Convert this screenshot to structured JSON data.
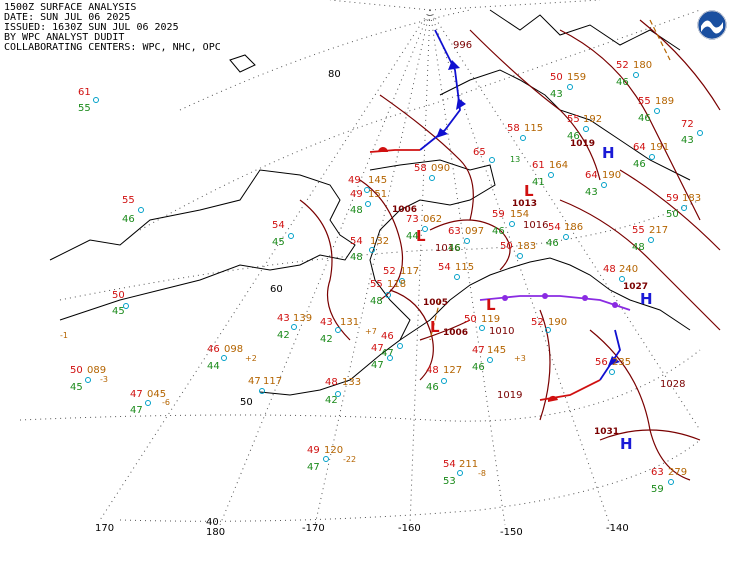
{
  "header": {
    "line1": "1500Z SURFACE ANALYSIS",
    "line2": "DATE: SUN JUL 06 2025",
    "line3": "ISSUED: 1630Z SUN JUL 06 2025",
    "line4": "BY WPC ANALYST DUDIT",
    "line5": "COLLABORATING CENTERS: WPC, NHC, OPC"
  },
  "logo": {
    "icon": "noaa-logo-icon",
    "text": "NOAA"
  },
  "grid": {
    "lat_labels": [
      "80",
      "60",
      "50",
      "40"
    ],
    "lon_labels": [
      "170",
      "180",
      "-170",
      "-160",
      "-150",
      "-140"
    ]
  },
  "pressure_centers": [
    {
      "type": "H",
      "value": "1019"
    },
    {
      "type": "L",
      "value": "1013"
    },
    {
      "type": "L",
      "value": "1006"
    },
    {
      "type": "L",
      "value": "1005"
    },
    {
      "type": "L",
      "value": "1006"
    },
    {
      "type": "H",
      "value": "1027"
    },
    {
      "type": "H",
      "value": "1031"
    }
  ],
  "isobar_labels": [
    "996",
    "1016",
    "1016",
    "1010",
    "1019",
    "1028"
  ],
  "stations": [
    {
      "t": "61",
      "d": "55"
    },
    {
      "t": "55",
      "d": "46"
    },
    {
      "t": "54",
      "d": "45"
    },
    {
      "t": "50",
      "d": "45",
      "tend": "-1"
    },
    {
      "t": "50",
      "p": "089",
      "d": "45",
      "tend": "-3"
    },
    {
      "t": "47",
      "p": "045",
      "d": "47",
      "tend": "-6"
    },
    {
      "t": "46",
      "p": "098",
      "d": "44",
      "tend": "+2"
    },
    {
      "t": "43",
      "p": "139",
      "d": "42"
    },
    {
      "t": "43",
      "p": "131",
      "d": "42",
      "tend": "+7"
    },
    {
      "t": "47",
      "p": "117"
    },
    {
      "t": "48",
      "p": "133",
      "d": "42"
    },
    {
      "t": "49",
      "p": "120",
      "d": "47",
      "tend": "-22"
    },
    {
      "t": "54",
      "p": "211",
      "d": "53",
      "tend": "-8"
    },
    {
      "t": "48",
      "p": "127",
      "d": "46"
    },
    {
      "t": "47",
      "p": "145",
      "d": "46",
      "tend": "+3"
    },
    {
      "t": "52",
      "p": "190"
    },
    {
      "t": "56",
      "p": "235"
    },
    {
      "t": "63",
      "p": "279",
      "d": "59"
    },
    {
      "t": "48",
      "p": "240"
    },
    {
      "t": "55",
      "p": "217",
      "d": "48"
    },
    {
      "t": "54",
      "p": "186"
    },
    {
      "t": "59",
      "p": "183",
      "d": "50"
    },
    {
      "t": "64",
      "p": "191",
      "d": "46"
    },
    {
      "t": "64",
      "p": "190",
      "d": "43"
    },
    {
      "t": "61",
      "p": "164",
      "d": "41"
    },
    {
      "t": "55",
      "p": "192",
      "d": "46"
    },
    {
      "t": "50",
      "p": "159",
      "d": "43"
    },
    {
      "t": "52",
      "p": "180",
      "d": "46"
    },
    {
      "t": "55",
      "p": "189",
      "d": "46"
    },
    {
      "t": "72",
      "d": "43"
    },
    {
      "t": "58",
      "p": "115"
    },
    {
      "t": "65",
      "d": "13"
    },
    {
      "t": "59",
      "p": "154",
      "d": "46"
    },
    {
      "t": "50",
      "p": "183",
      "d": "46"
    },
    {
      "t": "54",
      "p": "115"
    },
    {
      "t": "50",
      "p": "119"
    },
    {
      "t": "52",
      "p": "117"
    },
    {
      "t": "49",
      "p": "145",
      "d": "48"
    },
    {
      "t": "49",
      "p": "151",
      "d": "48"
    },
    {
      "t": "73",
      "p": "062",
      "d": "44"
    },
    {
      "t": "63",
      "p": "097",
      "d": "46"
    },
    {
      "t": "58",
      "p": "090"
    },
    {
      "t": "55",
      "p": "118",
      "d": "48"
    },
    {
      "t": "54",
      "p": "132"
    },
    {
      "t": "46",
      "d": "47"
    },
    {
      "t": "47",
      "d": "47"
    }
  ]
}
